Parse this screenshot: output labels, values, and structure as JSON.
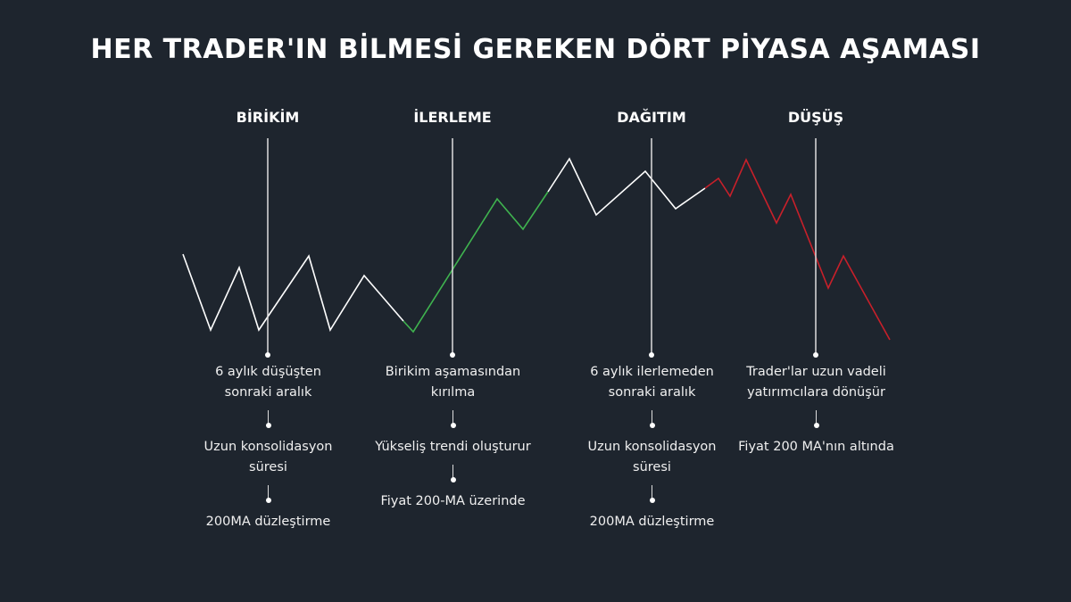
{
  "title": "HER TRADER'IN BİLMESİ GEREKEN DÖRT PİYASA AŞAMASI",
  "stages": [
    {
      "label": "BİRİKİM",
      "notes": [
        "6 aylık düşüşten sonraki aralık",
        "Uzun konsolidasyon süresi",
        "200MA düzleştirme"
      ]
    },
    {
      "label": "İLERLEME",
      "notes": [
        "Birikim aşamasından kırılma",
        "Yükseliş trendi oluşturur",
        "Fiyat 200-MA üzerinde"
      ]
    },
    {
      "label": "DAĞITIM",
      "notes": [
        "6 aylık ilerlemeden sonraki aralık",
        "Uzun konsolidasyon süresi",
        "200MA düzleştirme"
      ]
    },
    {
      "label": "DÜŞÜŞ",
      "notes": [
        "Trader'lar uzun vadeli yatırımcılara dönüşür",
        "Fiyat 200 MA'nın altında"
      ]
    }
  ]
}
